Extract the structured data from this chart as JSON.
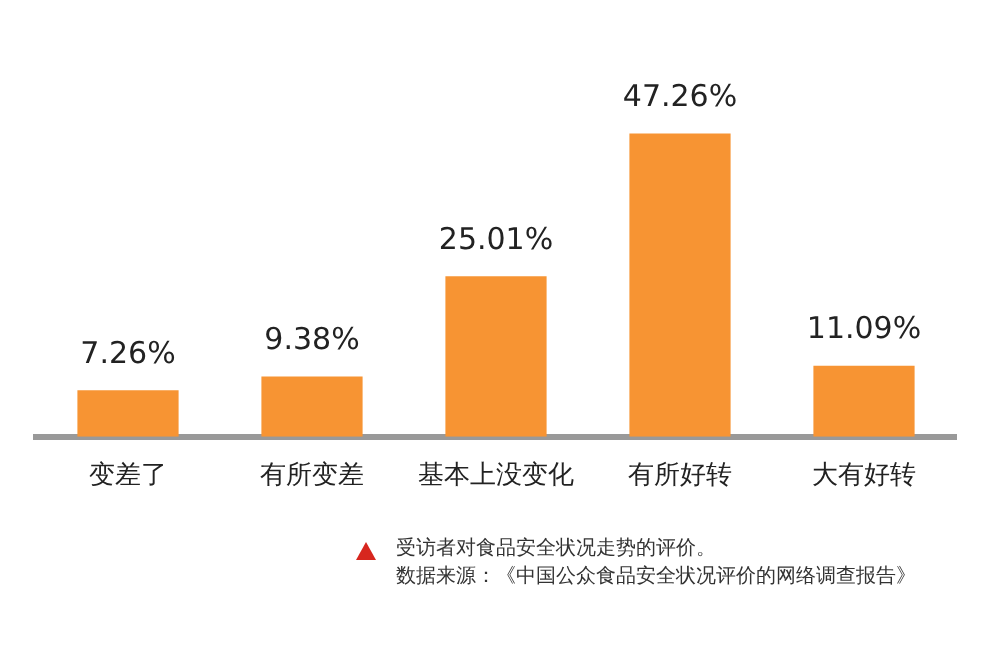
{
  "chart_data": {
    "type": "bar",
    "categories": [
      "变差了",
      "有所变差",
      "基本上没变化",
      "有所好转",
      "大有好转"
    ],
    "values": [
      7.26,
      9.38,
      25.01,
      47.26,
      11.09
    ],
    "value_labels": [
      "7.26%",
      "9.38%",
      "25.01%",
      "47.26%",
      "11.09%"
    ],
    "color": "#f79433",
    "legend": false,
    "grid": false,
    "annotations": [
      "受访者对食品安全状况走势的评价。",
      "数据来源：《中国公众食品安全状况评价的网络调查报告》"
    ]
  }
}
